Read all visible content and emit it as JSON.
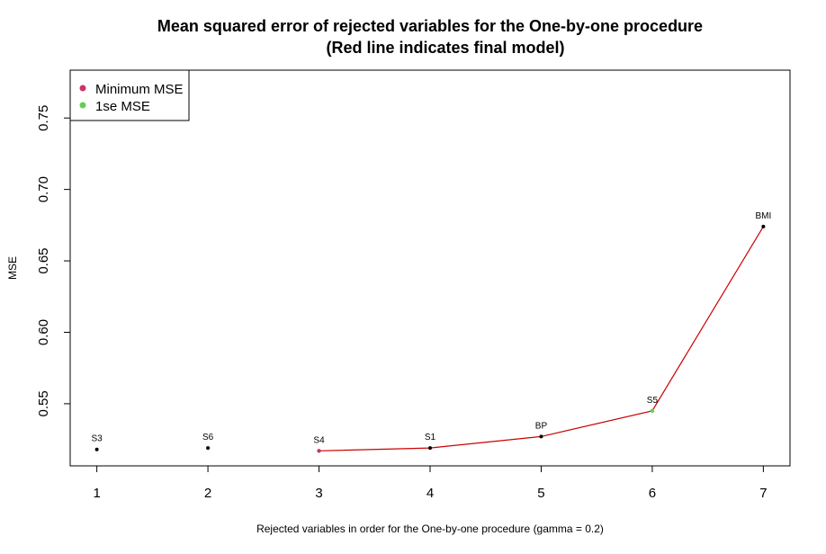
{
  "chart_data": {
    "type": "line",
    "title_line1": "Mean squared error of rejected variables for the One-by-one procedure",
    "title_line2": "(Red line indicates final model)",
    "xlabel": "Rejected variables in order for the One-by-one procedure (gamma = 0.2)",
    "ylabel": "MSE",
    "x": [
      1,
      2,
      3,
      4,
      5,
      6,
      7
    ],
    "labels": [
      "S3",
      "S6",
      "S4",
      "S1",
      "BP",
      "S5",
      "BMI"
    ],
    "y": [
      0.518,
      0.519,
      0.517,
      0.519,
      0.527,
      0.545,
      0.674
    ],
    "xlim": [
      0.76,
      7.24
    ],
    "ylim": [
      0.5065,
      0.7835
    ],
    "xticks": [
      1,
      2,
      3,
      4,
      5,
      6,
      7
    ],
    "yticks": [
      0.55,
      0.6,
      0.65,
      0.7,
      0.75
    ],
    "ytick_labels": [
      "0.55",
      "0.60",
      "0.65",
      "0.70",
      "0.75"
    ],
    "final_model_line": {
      "color": "#cc0000",
      "from_index": 2,
      "to_index": 6
    },
    "legend": {
      "placement": "top-left",
      "entries": [
        {
          "label": "Minimum MSE",
          "color": "#cc3366"
        },
        {
          "label": "1se MSE",
          "color": "#66cc55"
        }
      ]
    },
    "point_color": "#000000",
    "min_marker_index": 2,
    "se_marker_index": 5
  }
}
